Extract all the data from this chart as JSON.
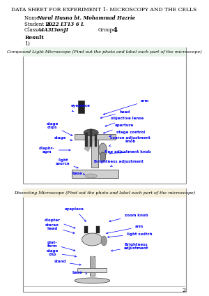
{
  "title": "DATA SHEET FOR EXPERIMENT 1: MICROSCOPY AND THE CELLS",
  "name_label": "Name:",
  "name_value": "Nurul Husna bt. Mohammad Hazrie",
  "student_label": "Student Id:",
  "student_value": "2022 LT13 6 L",
  "class_label": "Class:",
  "class_value": "A4A3I3onJI",
  "group_label": "Group:",
  "group_value": "4",
  "result_label": "Result",
  "item1": "1)",
  "box1_title": "Compound Light Microscope (Find out the photo and label each part of the microscope)",
  "box2_title": "Dissecting Microscope (Find out the photo and label each part of the microscope)",
  "page_number": "2",
  "bg_color": "#ffffff",
  "box1_header_color": "#e8f4e8",
  "box2_header_color": "#f5f0dc",
  "box_border_color": "#888888",
  "text_color_blue": "#0000ff",
  "text_color_black": "#000000"
}
